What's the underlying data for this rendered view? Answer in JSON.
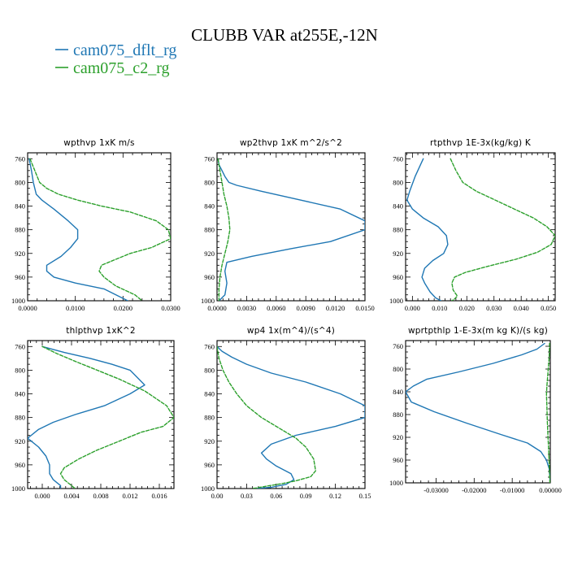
{
  "figure": {
    "title": "CLUBB VAR at255E,-12N",
    "legend": [
      {
        "name": "cam075_dflt_rg",
        "color": "#1f77b4",
        "dash": ""
      },
      {
        "name": "cam075_c2_rg",
        "color": "#2ca02c",
        "dash": "4,2"
      }
    ]
  },
  "chart_data": [
    {
      "type": "line",
      "title": "wpthvp  1xK m/s",
      "xlim": [
        0.0,
        0.03
      ],
      "ylim": [
        1000,
        750
      ],
      "xticks": [
        0.0,
        0.01,
        0.02,
        0.03
      ],
      "xtick_labels": [
        "0.0000",
        "0.0100",
        "0.0200",
        "0.0300"
      ],
      "yticks": [
        760,
        800,
        840,
        880,
        920,
        960,
        1000
      ],
      "series": [
        {
          "name": "cam075_dflt_rg",
          "x": [
            0.0003,
            0.0008,
            0.0012,
            0.0018,
            0.003,
            0.0055,
            0.0085,
            0.0105,
            0.0105,
            0.009,
            0.007,
            0.004,
            0.004,
            0.0055,
            0.01,
            0.016,
            0.021
          ],
          "y": [
            760,
            780,
            800,
            820,
            830,
            845,
            865,
            880,
            895,
            910,
            925,
            940,
            950,
            960,
            970,
            980,
            1000
          ]
        },
        {
          "name": "cam075_c2_rg",
          "x": [
            0.0005,
            0.0015,
            0.0025,
            0.004,
            0.0065,
            0.0105,
            0.0155,
            0.0215,
            0.027,
            0.0295,
            0.03,
            0.026,
            0.0215,
            0.0185,
            0.0155,
            0.015,
            0.016,
            0.0185,
            0.0225,
            0.024
          ],
          "y": [
            760,
            780,
            800,
            810,
            820,
            830,
            840,
            850,
            865,
            880,
            895,
            910,
            920,
            930,
            940,
            950,
            960,
            975,
            990,
            1000
          ]
        }
      ]
    },
    {
      "type": "line",
      "title": "wp2thvp  1xK m^2/s^2",
      "xlim": [
        0.0,
        0.015
      ],
      "ylim": [
        1000,
        750
      ],
      "xticks": [
        0.0,
        0.003,
        0.006,
        0.009,
        0.012,
        0.015
      ],
      "xtick_labels": [
        "0.0000",
        "0.0030",
        "0.0060",
        "0.0090",
        "0.0120",
        "0.0150"
      ],
      "yticks": [
        760,
        800,
        840,
        880,
        920,
        960,
        1000
      ],
      "series": [
        {
          "name": "cam075_dflt_rg",
          "x": [
            0.0001,
            0.0002,
            0.0005,
            0.0008,
            0.0012,
            0.002,
            0.0045,
            0.0085,
            0.0125,
            0.015,
            0.015,
            0.0115,
            0.0075,
            0.0035,
            0.001,
            0.0008,
            0.001,
            0.0008,
            0.0002
          ],
          "y": [
            760,
            770,
            780,
            790,
            800,
            805,
            815,
            830,
            845,
            865,
            880,
            900,
            912,
            925,
            935,
            950,
            970,
            990,
            1000
          ]
        },
        {
          "name": "cam075_c2_rg",
          "x": [
            0.0001,
            0.0003,
            0.0005,
            0.0007,
            0.001,
            0.0012,
            0.0013,
            0.0011,
            0.0008,
            0.0005,
            0.0003,
            0.0002,
            0.0002
          ],
          "y": [
            760,
            780,
            800,
            820,
            840,
            860,
            880,
            900,
            920,
            940,
            960,
            980,
            1000
          ]
        }
      ]
    },
    {
      "type": "line",
      "title": "rtpthvp  1E-3x(kg/kg) K",
      "xlim": [
        -0.0025,
        0.0525
      ],
      "ylim": [
        1000,
        750
      ],
      "xticks": [
        0.0,
        0.01,
        0.02,
        0.03,
        0.04,
        0.05
      ],
      "xtick_labels": [
        "0.000",
        "0.010",
        "0.020",
        "0.030",
        "0.040",
        "0.050"
      ],
      "yticks": [
        760,
        800,
        840,
        880,
        920,
        960,
        1000
      ],
      "series": [
        {
          "name": "cam075_dflt_rg",
          "x": [
            0.004,
            0.0025,
            0.001,
            -0.001,
            -0.002,
            0.0,
            0.004,
            0.0095,
            0.0125,
            0.013,
            0.0115,
            0.0075,
            0.0045,
            0.0035,
            0.0045,
            0.0065,
            0.0085,
            0.0105
          ],
          "y": [
            760,
            775,
            790,
            815,
            830,
            845,
            860,
            875,
            890,
            905,
            920,
            932,
            945,
            960,
            970,
            985,
            995,
            1000
          ]
        },
        {
          "name": "cam075_c2_rg",
          "x": [
            0.014,
            0.016,
            0.0185,
            0.0235,
            0.0305,
            0.0375,
            0.0445,
            0.0495,
            0.0525,
            0.051,
            0.046,
            0.038,
            0.0275,
            0.0195,
            0.0155,
            0.0145,
            0.015,
            0.0165,
            0.0155,
            0.0145
          ],
          "y": [
            760,
            780,
            800,
            815,
            830,
            845,
            860,
            875,
            890,
            905,
            918,
            930,
            942,
            952,
            960,
            970,
            982,
            992,
            997,
            1000
          ]
        }
      ]
    },
    {
      "type": "line",
      "title": "thlpthvp  1xK^2",
      "xlim": [
        -0.002,
        0.018
      ],
      "ylim": [
        1000,
        750
      ],
      "xticks": [
        0.0,
        0.004,
        0.008,
        0.012,
        0.016
      ],
      "xtick_labels": [
        "0.000",
        "0.004",
        "0.008",
        "0.012",
        "0.016"
      ],
      "yticks": [
        760,
        800,
        840,
        880,
        920,
        960,
        1000
      ],
      "series": [
        {
          "name": "cam075_dflt_rg",
          "x": [
            0.0,
            0.003,
            0.0065,
            0.0095,
            0.012,
            0.014,
            0.012,
            0.0085,
            0.0045,
            0.0015,
            -0.0005,
            -0.002,
            -0.0005,
            0.0005,
            0.001,
            0.001,
            0.0015,
            0.0025,
            0.0025
          ],
          "y": [
            760,
            770,
            780,
            790,
            800,
            825,
            840,
            860,
            875,
            888,
            900,
            915,
            930,
            945,
            960,
            975,
            985,
            995,
            1000
          ]
        },
        {
          "name": "cam075_c2_rg",
          "x": [
            0.0,
            0.002,
            0.0045,
            0.0075,
            0.0105,
            0.014,
            0.017,
            0.018,
            0.0165,
            0.0135,
            0.0105,
            0.0075,
            0.005,
            0.003,
            0.0025,
            0.003,
            0.004,
            0.0045
          ],
          "y": [
            760,
            772,
            785,
            800,
            815,
            835,
            860,
            880,
            895,
            905,
            920,
            935,
            950,
            965,
            975,
            985,
            995,
            1000
          ]
        }
      ]
    },
    {
      "type": "line",
      "title": "wp4  1x(m^4)/(s^4)",
      "xlim": [
        0.0,
        0.15
      ],
      "ylim": [
        1000,
        750
      ],
      "xticks": [
        0.0,
        0.03,
        0.06,
        0.09,
        0.12,
        0.15
      ],
      "xtick_labels": [
        "0.00",
        "0.03",
        "0.06",
        "0.09",
        "0.12",
        "0.15"
      ],
      "yticks": [
        760,
        800,
        840,
        880,
        920,
        960,
        1000
      ],
      "series": [
        {
          "name": "cam075_dflt_rg",
          "x": [
            0.0,
            0.005,
            0.015,
            0.03,
            0.055,
            0.09,
            0.125,
            0.15,
            0.15,
            0.12,
            0.08,
            0.055,
            0.045,
            0.05,
            0.06,
            0.075,
            0.078,
            0.07,
            0.055,
            0.04
          ],
          "y": [
            760,
            768,
            778,
            790,
            805,
            820,
            840,
            860,
            880,
            895,
            910,
            925,
            940,
            950,
            962,
            975,
            985,
            993,
            998,
            1000
          ]
        },
        {
          "name": "cam075_c2_rg",
          "x": [
            0.0,
            0.002,
            0.006,
            0.012,
            0.02,
            0.03,
            0.045,
            0.065,
            0.08,
            0.09,
            0.098,
            0.1,
            0.095,
            0.08,
            0.065,
            0.05,
            0.04,
            0.035
          ],
          "y": [
            760,
            780,
            800,
            820,
            840,
            860,
            880,
            900,
            915,
            930,
            950,
            970,
            980,
            987,
            992,
            996,
            999,
            1000
          ]
        }
      ]
    },
    {
      "type": "line",
      "title": "wprtpthlp  1-E-3x(m kg K)/(s kg)",
      "xlim": [
        -0.038,
        0.0
      ],
      "ylim": [
        1000,
        750
      ],
      "xticks": [
        -0.03,
        -0.02,
        -0.01,
        0.0
      ],
      "xtick_labels": [
        "-0.03000",
        "-0.02000",
        "-0.01000",
        "0.00000"
      ],
      "yticks": [
        760,
        800,
        840,
        880,
        920,
        960,
        1000
      ],
      "series": [
        {
          "name": "cam075_dflt_rg",
          "x": [
            -0.0015,
            -0.0035,
            -0.0075,
            -0.015,
            -0.024,
            -0.0325,
            -0.036,
            -0.038,
            -0.0365,
            -0.0305,
            -0.022,
            -0.013,
            -0.006,
            -0.0025,
            -0.001,
            -0.0003,
            0.0
          ],
          "y": [
            755,
            765,
            775,
            790,
            805,
            818,
            830,
            840,
            858,
            875,
            895,
            915,
            930,
            945,
            960,
            975,
            1000
          ]
        },
        {
          "name": "cam075_c2_rg",
          "x": [
            -0.0002,
            -0.0003,
            -0.0006,
            -0.0009,
            -0.001,
            -0.0009,
            -0.0008,
            -0.0006,
            -0.0004,
            -0.0003,
            -0.0002,
            -0.0001
          ],
          "y": [
            755,
            780,
            805,
            830,
            845,
            865,
            890,
            920,
            945,
            965,
            985,
            1000
          ]
        }
      ]
    }
  ]
}
